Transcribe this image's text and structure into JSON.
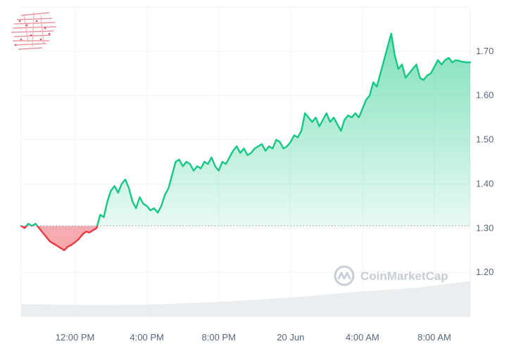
{
  "chart_data": {
    "type": "area",
    "title": "",
    "xlabel": "",
    "ylabel": "",
    "baseline": 1.305,
    "ylim": [
      1.1,
      1.8
    ],
    "y_ticks": [
      "1.20",
      "1.30",
      "1.40",
      "1.50",
      "1.60",
      "1.70"
    ],
    "y_tick_values": [
      1.2,
      1.3,
      1.4,
      1.5,
      1.6,
      1.7
    ],
    "x_ticks": [
      "12:00 PM",
      "4:00 PM",
      "8:00 PM",
      "20 Jun",
      "4:00 AM",
      "8:00 AM"
    ],
    "x_tick_hours": [
      12,
      16,
      20,
      24,
      28,
      32
    ],
    "xlim_hours": [
      9.0,
      34.0
    ],
    "grid": true,
    "up_color": "#16c784",
    "down_color": "#ea3943",
    "watermark": "CoinMarketCap",
    "series": [
      {
        "x": [
          9.0,
          9.2,
          9.4,
          9.6,
          9.8,
          10.0,
          10.2,
          10.4,
          10.6,
          10.8,
          11.0,
          11.2,
          11.4,
          11.6,
          11.8,
          12.0,
          12.2,
          12.4,
          12.6,
          12.8,
          13.0,
          13.2,
          13.4,
          13.6,
          13.8,
          14.0,
          14.2,
          14.4,
          14.6,
          14.8,
          15.0,
          15.2,
          15.4,
          15.6,
          15.8,
          16.0,
          16.2,
          16.4,
          16.6,
          16.8,
          17.0,
          17.2,
          17.4,
          17.6,
          17.8,
          18.0,
          18.2,
          18.4,
          18.6,
          18.8,
          19.0,
          19.2,
          19.4,
          19.6,
          19.8,
          20.0,
          20.2,
          20.4,
          20.6,
          20.8,
          21.0,
          21.2,
          21.4,
          21.6,
          21.8,
          22.0,
          22.2,
          22.4,
          22.6,
          22.8,
          23.0,
          23.2,
          23.4,
          23.6,
          23.8,
          24.0,
          24.2,
          24.4,
          24.6,
          24.8,
          25.0,
          25.2,
          25.4,
          25.6,
          25.8,
          26.0,
          26.2,
          26.4,
          26.6,
          26.8,
          27.0,
          27.2,
          27.4,
          27.6,
          27.8,
          28.0,
          28.2,
          28.4,
          28.6,
          28.8,
          29.0,
          29.2,
          29.4,
          29.6,
          29.8,
          30.0,
          30.2,
          30.4,
          30.6,
          30.8,
          31.0,
          31.2,
          31.4,
          31.6,
          31.8,
          32.0,
          32.2,
          32.4,
          32.6,
          32.8,
          33.0,
          33.2,
          33.4,
          33.6,
          33.8,
          34.0
        ],
        "y": [
          1.305,
          1.3,
          1.31,
          1.305,
          1.31,
          1.3,
          1.29,
          1.28,
          1.27,
          1.265,
          1.26,
          1.255,
          1.25,
          1.258,
          1.262,
          1.268,
          1.275,
          1.285,
          1.292,
          1.29,
          1.295,
          1.3,
          1.33,
          1.325,
          1.36,
          1.385,
          1.395,
          1.38,
          1.4,
          1.41,
          1.39,
          1.36,
          1.345,
          1.37,
          1.355,
          1.35,
          1.34,
          1.345,
          1.335,
          1.35,
          1.375,
          1.39,
          1.42,
          1.45,
          1.455,
          1.44,
          1.45,
          1.445,
          1.43,
          1.44,
          1.435,
          1.45,
          1.445,
          1.46,
          1.44,
          1.43,
          1.45,
          1.445,
          1.46,
          1.475,
          1.485,
          1.47,
          1.48,
          1.465,
          1.47,
          1.48,
          1.485,
          1.49,
          1.475,
          1.485,
          1.48,
          1.5,
          1.495,
          1.48,
          1.485,
          1.495,
          1.51,
          1.505,
          1.52,
          1.56,
          1.55,
          1.54,
          1.55,
          1.53,
          1.545,
          1.56,
          1.54,
          1.55,
          1.535,
          1.52,
          1.545,
          1.555,
          1.55,
          1.56,
          1.55,
          1.57,
          1.59,
          1.6,
          1.63,
          1.62,
          1.65,
          1.68,
          1.71,
          1.74,
          1.69,
          1.66,
          1.67,
          1.64,
          1.65,
          1.66,
          1.67,
          1.64,
          1.635,
          1.645,
          1.65,
          1.665,
          1.68,
          1.67,
          1.68,
          1.685,
          1.675,
          1.68,
          1.678,
          1.676,
          1.675,
          1.675
        ]
      }
    ],
    "volume": {
      "x": [
        9.0,
        13.0,
        16.0,
        20.0,
        24.0,
        28.0,
        31.0,
        34.0
      ],
      "y": [
        1.128,
        1.126,
        1.127,
        1.133,
        1.143,
        1.157,
        1.165,
        1.18
      ]
    }
  }
}
